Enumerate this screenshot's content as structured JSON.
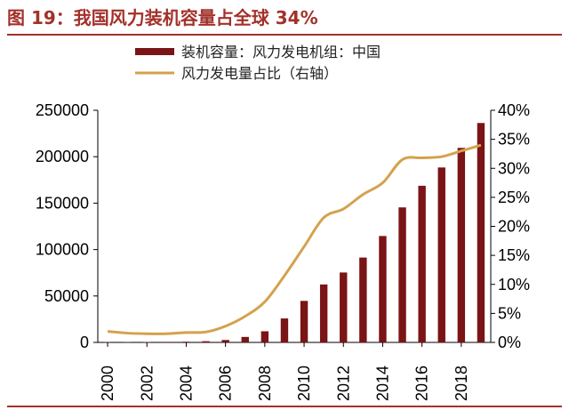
{
  "figure": {
    "title": "图 19：我国风力装机容量占全球 34%"
  },
  "colors": {
    "bar": "#7a1416",
    "line": "#d4a24c",
    "title": "#a3312b",
    "axis": "#000000"
  },
  "chart_data": {
    "type": "bar",
    "title": "",
    "x": [
      2000,
      2001,
      2002,
      2003,
      2004,
      2005,
      2006,
      2007,
      2008,
      2009,
      2010,
      2011,
      2012,
      2013,
      2014,
      2015,
      2016,
      2017,
      2018,
      2019
    ],
    "x_tick_labels": [
      "2000",
      "2002",
      "2004",
      "2006",
      "2008",
      "2010",
      "2012",
      "2014",
      "2016",
      "2018"
    ],
    "series": [
      {
        "name": "装机容量：风力发电机组：中国",
        "type": "bar",
        "axis": "left",
        "values": [
          340,
          400,
          470,
          570,
          760,
          1270,
          2600,
          5900,
          12000,
          25800,
          44700,
          62400,
          75300,
          91400,
          114600,
          145400,
          168700,
          188400,
          209500,
          236300
        ]
      },
      {
        "name": "风力发电量占比（右轴）",
        "type": "line",
        "axis": "right",
        "values": [
          1.9,
          1.6,
          1.5,
          1.5,
          1.7,
          1.8,
          2.8,
          4.5,
          7.0,
          11.5,
          16.5,
          21.5,
          23.0,
          25.5,
          27.5,
          31.5,
          31.8,
          32.0,
          33.0,
          34.0
        ]
      }
    ],
    "y_left": {
      "lim": [
        0,
        250000
      ],
      "ticks": [
        "0",
        "50000",
        "100000",
        "150000",
        "200000",
        "250000"
      ]
    },
    "y_right": {
      "lim": [
        0,
        40
      ],
      "ticks": [
        "0%",
        "5%",
        "10%",
        "15%",
        "20%",
        "25%",
        "30%",
        "35%",
        "40%"
      ]
    },
    "legend": {
      "placement": "top-center",
      "entries": [
        "装机容量：风力发电机组：中国",
        "风力发电量占比（右轴）"
      ]
    },
    "grid": false
  }
}
